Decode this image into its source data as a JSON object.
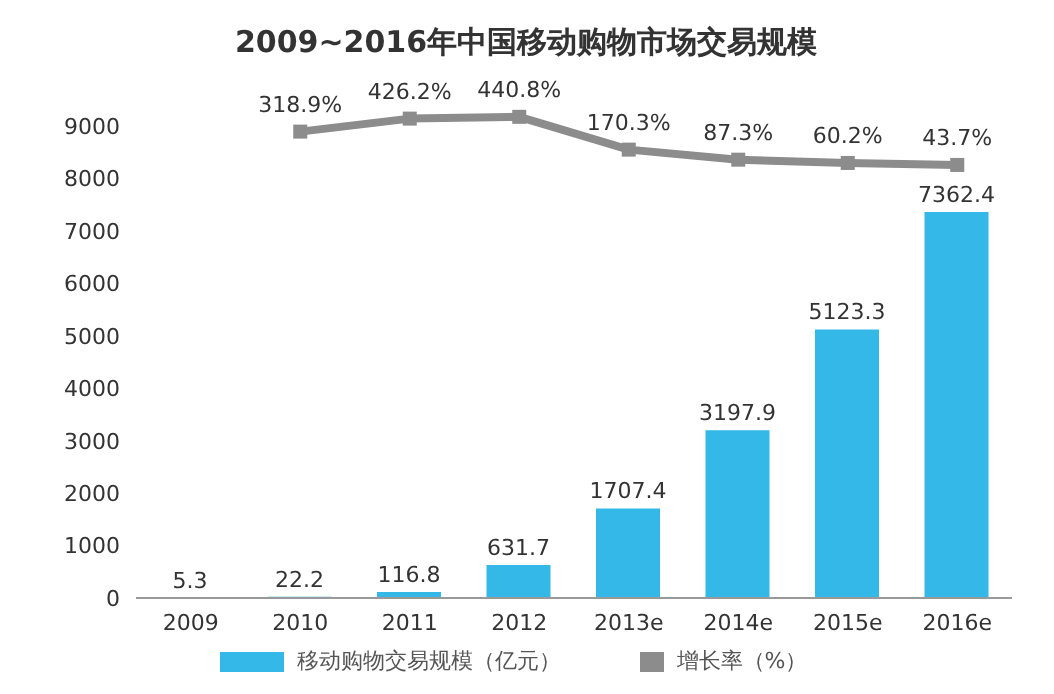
{
  "chart_data": {
    "type": "bar",
    "title": "2009~2016年中国移动购物市场交易规模",
    "categories": [
      "2009",
      "2010",
      "2011",
      "2012",
      "2013e",
      "2014e",
      "2015e",
      "2016e"
    ],
    "series": [
      {
        "name": "移动购物交易规模（亿元）",
        "color": "#33b8e8",
        "values": [
          5.3,
          22.2,
          116.8,
          631.7,
          1707.4,
          3197.9,
          5123.3,
          7362.4
        ]
      },
      {
        "name": "增长率（%）",
        "type": "line",
        "axis": "y2",
        "color": "#8c8c8c",
        "values": [
          null,
          318.9,
          426.2,
          440.8,
          170.3,
          87.3,
          60.2,
          43.7
        ],
        "value_labels": [
          null,
          "318.9%",
          "426.2%",
          "440.8%",
          "170.3%",
          "87.3%",
          "60.2%",
          "43.7%"
        ]
      }
    ],
    "ylim": [
      0,
      9500
    ],
    "yticks": [
      0,
      1000,
      2000,
      3000,
      4000,
      5000,
      6000,
      7000,
      8000,
      9000
    ],
    "data_labels": true,
    "marker": "square",
    "grid": false,
    "legend": "bottom"
  }
}
